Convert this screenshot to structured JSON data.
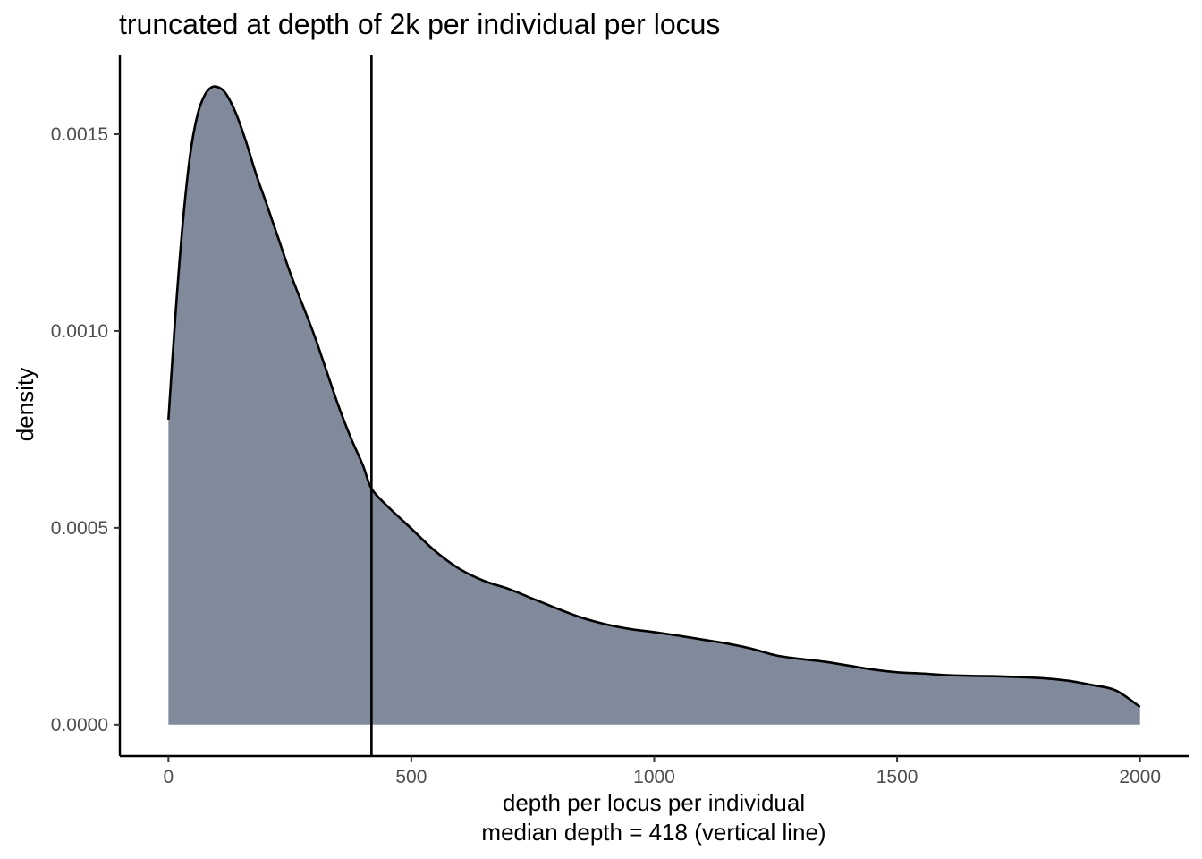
{
  "chart_data": {
    "type": "area",
    "title": "truncated at depth of 2k per individual per locus",
    "xlabel": "depth per locus per individual",
    "xlabel_line2": "median depth = 418 (vertical line)",
    "ylabel": "density",
    "xlim": [
      -100,
      2100
    ],
    "ylim": [
      -8e-05,
      0.0017
    ],
    "x_ticks": [
      0,
      500,
      1000,
      1500,
      2000
    ],
    "x_tick_labels": [
      "0",
      "500",
      "1000",
      "1500",
      "2000"
    ],
    "y_ticks": [
      0.0,
      0.0005,
      0.001,
      0.0015
    ],
    "y_tick_labels": [
      "0.0000",
      "0.0005",
      "0.0010",
      "0.0015"
    ],
    "grid": false,
    "fill_color": "#808a9b",
    "line_color": "#000000",
    "median": {
      "value": 418,
      "label": "median depth"
    },
    "series": [
      {
        "name": "density",
        "x": [
          0,
          15,
          30,
          45,
          60,
          75,
          90,
          105,
          120,
          140,
          160,
          180,
          200,
          225,
          250,
          275,
          300,
          325,
          350,
          375,
          400,
          418,
          450,
          500,
          550,
          600,
          650,
          700,
          750,
          800,
          850,
          900,
          950,
          1000,
          1050,
          1100,
          1150,
          1200,
          1250,
          1300,
          1350,
          1400,
          1450,
          1500,
          1550,
          1600,
          1650,
          1700,
          1750,
          1800,
          1850,
          1900,
          1950,
          2000
        ],
        "y": [
          0.000775,
          0.00105,
          0.00128,
          0.00145,
          0.00155,
          0.0016,
          0.00162,
          0.001618,
          0.0016,
          0.00155,
          0.00148,
          0.0014,
          0.00133,
          0.00124,
          0.00115,
          0.00107,
          0.00099,
          0.0009,
          0.00081,
          0.00073,
          0.00066,
          0.0006,
          0.000556,
          0.000498,
          0.00044,
          0.000395,
          0.000365,
          0.000345,
          0.00032,
          0.000295,
          0.000272,
          0.000255,
          0.000243,
          0.000235,
          0.000226,
          0.000216,
          0.000206,
          0.000193,
          0.000176,
          0.000167,
          0.00016,
          0.00015,
          0.00014,
          0.000133,
          0.00013,
          0.000126,
          0.000124,
          0.000123,
          0.000121,
          0.000118,
          0.000112,
          0.000101,
          8.7e-05,
          4.5e-05
        ]
      }
    ]
  }
}
